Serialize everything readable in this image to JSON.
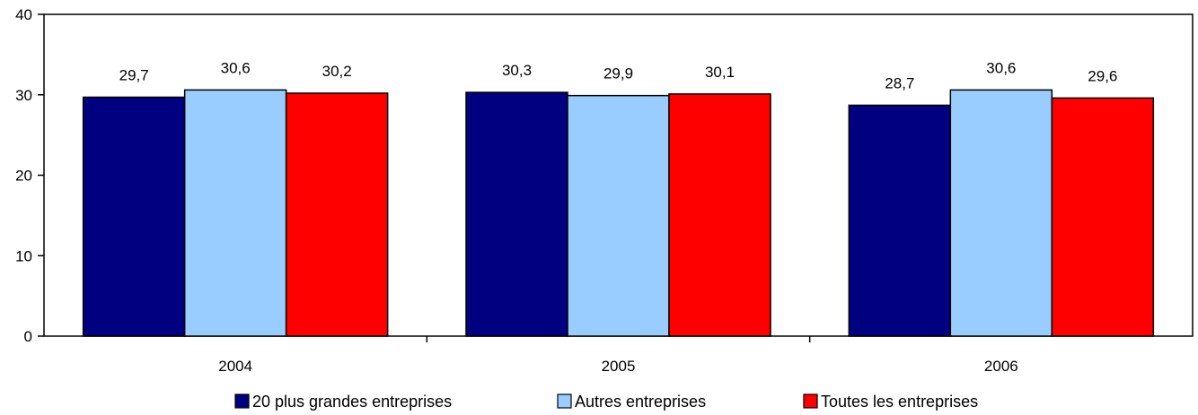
{
  "chart_data": {
    "type": "bar",
    "title": "",
    "xlabel": "",
    "ylabel": "",
    "categories": [
      "2004",
      "2005",
      "2006"
    ],
    "series": [
      {
        "name": "20 plus grandes entreprises",
        "color": "#000080",
        "values": [
          29.7,
          30.3,
          28.7
        ],
        "labels": [
          "29,7",
          "30,3",
          "28,7"
        ]
      },
      {
        "name": "Autres entreprises",
        "color": "#99ccff",
        "values": [
          30.6,
          29.9,
          30.6
        ],
        "labels": [
          "30,6",
          "29,9",
          "30,6"
        ]
      },
      {
        "name": "Toutes les entreprises",
        "color": "#ff0000",
        "values": [
          30.2,
          30.1,
          29.6
        ],
        "labels": [
          "30,2",
          "30,1",
          "29,6"
        ]
      }
    ],
    "ylim": [
      0,
      40
    ],
    "yticks": [
      0,
      10,
      20,
      30,
      40
    ],
    "grid": false,
    "legend_position": "bottom"
  }
}
